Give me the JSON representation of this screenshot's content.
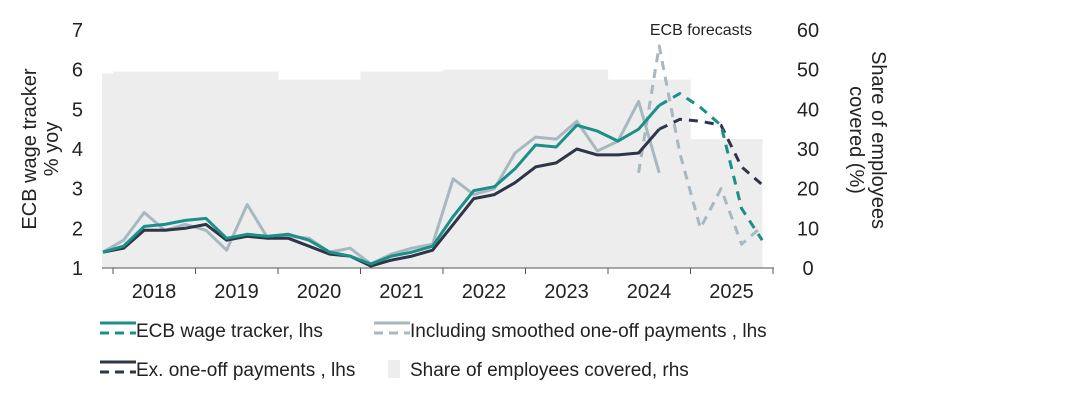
{
  "chart_data": {
    "type": "line",
    "title": "",
    "ylabel_left": [
      "ECB wage tracker",
      "% yoy"
    ],
    "ylabel_right": [
      "Share of employees",
      "covered (%)"
    ],
    "xlabel": "",
    "ylim_left": [
      1,
      7
    ],
    "yticks_left": [
      1,
      2,
      3,
      4,
      5,
      6,
      7
    ],
    "ylim_right": [
      0,
      60
    ],
    "yticks_right": [
      0,
      10,
      20,
      30,
      40,
      50,
      60
    ],
    "x_categories": [
      "2018",
      "2019",
      "2020",
      "2021",
      "2022",
      "2023",
      "2024",
      "2025"
    ],
    "x_quarters": [
      "2017Q4",
      "2018Q1",
      "2018Q2",
      "2018Q3",
      "2018Q4",
      "2019Q1",
      "2019Q2",
      "2019Q3",
      "2019Q4",
      "2020Q1",
      "2020Q2",
      "2020Q3",
      "2020Q4",
      "2021Q1",
      "2021Q2",
      "2021Q3",
      "2021Q4",
      "2022Q1",
      "2022Q2",
      "2022Q3",
      "2022Q4",
      "2023Q1",
      "2023Q2",
      "2023Q3",
      "2023Q4",
      "2024Q1",
      "2024Q2",
      "2024Q3",
      "2024Q4",
      "2025Q1",
      "2025Q2",
      "2025Q3",
      "2025Q4"
    ],
    "annotations": [
      {
        "text": "ECB forecasts",
        "at_quarter": "2024Q3"
      }
    ],
    "series": [
      {
        "name": "ECB wage tracker, lhs",
        "color": "#1a9089",
        "axis": "left",
        "style": "solid",
        "x_start": "2017Q4",
        "values": [
          1.4,
          1.55,
          2.05,
          2.1,
          2.2,
          2.25,
          1.75,
          1.85,
          1.8,
          1.85,
          1.7,
          1.4,
          1.3,
          1.1,
          1.3,
          1.4,
          1.55,
          2.3,
          2.95,
          3.05,
          3.5,
          4.1,
          4.05,
          4.6,
          4.45,
          4.2,
          4.5,
          5.1
        ]
      },
      {
        "name": "ECB wage tracker forecast",
        "color": "#1a9089",
        "axis": "left",
        "style": "dashed",
        "x_start": "2024Q3",
        "values": [
          5.1,
          5.4,
          5.05,
          4.6,
          2.5,
          1.7
        ]
      },
      {
        "name": "Including smoothed one-off payments , lhs",
        "color": "#a8b8c0",
        "axis": "left",
        "style": "solid",
        "x_start": "2017Q4",
        "values": [
          1.4,
          1.7,
          2.4,
          1.95,
          2.1,
          1.95,
          1.45,
          2.6,
          1.75,
          1.8,
          1.75,
          1.4,
          1.5,
          1.1,
          1.35,
          1.5,
          1.6,
          3.25,
          2.85,
          3.0,
          3.9,
          4.3,
          4.25,
          4.7,
          3.95,
          4.2,
          5.2,
          3.4
        ]
      },
      {
        "name": "Including smoothed one-off payments forecast",
        "color": "#a8b8c0",
        "axis": "left",
        "style": "dashed",
        "x_start": "2024Q2",
        "values": [
          3.4,
          6.6,
          3.9,
          2.0,
          3.0,
          1.6,
          2.05
        ]
      },
      {
        "name": "Ex. one-off payments , lhs",
        "color": "#2e3548",
        "axis": "left",
        "style": "solid",
        "x_start": "2017Q4",
        "values": [
          1.4,
          1.5,
          1.95,
          1.95,
          2.0,
          2.1,
          1.7,
          1.8,
          1.75,
          1.75,
          1.55,
          1.35,
          1.3,
          1.05,
          1.2,
          1.3,
          1.45,
          2.1,
          2.75,
          2.85,
          3.15,
          3.55,
          3.65,
          4.0,
          3.85,
          3.85,
          3.9,
          4.5
        ]
      },
      {
        "name": "Ex. one-off payments forecast",
        "color": "#2e3548",
        "axis": "left",
        "style": "dashed",
        "x_start": "2024Q3",
        "values": [
          4.5,
          4.75,
          4.7,
          4.6,
          3.55,
          3.1
        ]
      }
    ],
    "area_series": {
      "name": "Share of employees covered, rhs",
      "color": "#ededed",
      "axis": "right",
      "step": "quarterly",
      "x_start": "2017Q4",
      "values": [
        49,
        49.5,
        49.5,
        49.5,
        49.5,
        49.5,
        49.5,
        49.5,
        49.5,
        47.5,
        47.5,
        47.5,
        47.5,
        49.5,
        49.5,
        49.5,
        49.5,
        50,
        50,
        50,
        50,
        50,
        50,
        50,
        50,
        47.5,
        47.5,
        47.5,
        47.5,
        32.5,
        32.5,
        32.5,
        32.5
      ]
    },
    "legend_placement": "bottom",
    "grid": false
  },
  "legend": [
    {
      "label": "ECB wage tracker, lhs",
      "color": "#1a9089",
      "style": "solid-dashed"
    },
    {
      "label": "Including smoothed one-off payments , lhs",
      "color": "#a8b8c0",
      "style": "solid-dashed"
    },
    {
      "label": "Ex. one-off payments , lhs",
      "color": "#2e3548",
      "style": "solid-dashed"
    },
    {
      "label": "Share of employees covered, rhs",
      "color": "#ededed",
      "style": "patch"
    }
  ]
}
